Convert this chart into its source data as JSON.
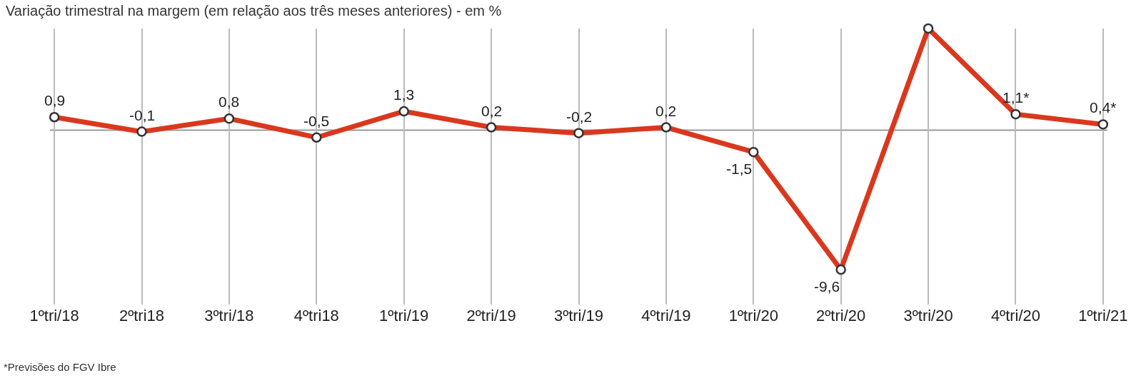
{
  "chart_data": {
    "type": "line",
    "title": "Variação trimestral na margem (em relação aos três meses anteriores) - em %",
    "categories": [
      "1ºtri/18",
      "2ºtri18",
      "3ºtri/18",
      "4ºtri18",
      "1ºtri/19",
      "2ºtri/19",
      "3ºtri/19",
      "4ºtri/19",
      "1ºtri/20",
      "2ºtri/20",
      "3ºtri/20",
      "4ºtri/20",
      "1ºtri/21"
    ],
    "series": [
      {
        "color": "#d9381e",
        "values": [
          0.9,
          -0.1,
          0.8,
          -0.5,
          1.3,
          0.2,
          -0.2,
          0.2,
          -1.5,
          -9.6,
          7.0,
          1.1,
          0.4
        ],
        "value_labels": [
          "0,9",
          "-0,1",
          "0,8",
          "-0,5",
          "1,3",
          "0,2",
          "-0,2",
          "0,2",
          "-1,5",
          "-9,6",
          null,
          "1,1*",
          "0,4*"
        ]
      }
    ],
    "ylim": [
      -12,
      7.0
    ],
    "grid": "x",
    "marker": "circle",
    "line_style": "solid",
    "ref_lines": [
      {
        "axis": "y",
        "value": 0,
        "color": "#999999"
      }
    ],
    "annotations": [
      "*Previsões do FGV Ibre"
    ]
  }
}
